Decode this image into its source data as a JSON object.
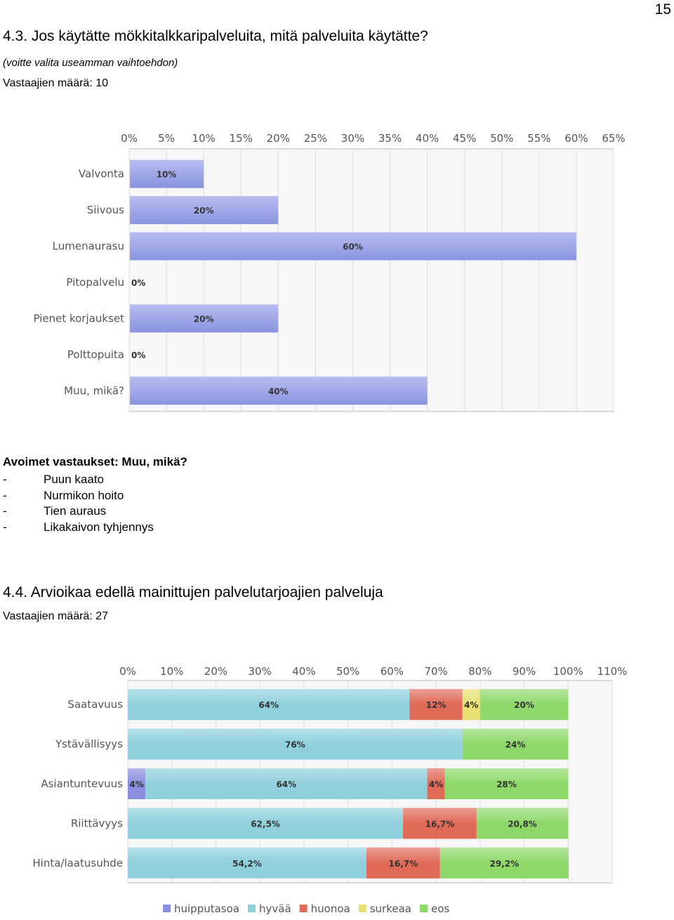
{
  "page_number": "15",
  "section1": {
    "title": "4.3. Jos käytätte mökkitalkkaripalveluita, mitä palveluita käytätte?",
    "note": "(voitte valita useamman vaihtoehdon)",
    "respondents": "Vastaajien määrä: 10"
  },
  "open_answers": {
    "heading": "Avoimet vastaukset: Muu, mikä?",
    "items": [
      {
        "bullet": "-",
        "text": "Puun kaato"
      },
      {
        "bullet": "-",
        "text": "Nurmikon hoito"
      },
      {
        "bullet": "-",
        "text": "Tien auraus"
      },
      {
        "bullet": "-",
        "text": "Likakaivon tyhjennys"
      }
    ]
  },
  "section2": {
    "title": "4.4. Arvioikaa edellä mainittujen palvelutarjoajien palveluja",
    "respondents": "Vastaajien määrä: 27"
  },
  "colors": {
    "huipputasoa": "#8a8fe0",
    "hyvaa": "#8fd0dc",
    "huonoa": "#e06a58",
    "surkeaa": "#e8e070",
    "eos": "#8ed86a",
    "bar1": "#8a93e0"
  },
  "chart_data": [
    {
      "type": "bar",
      "orientation": "horizontal",
      "categories": [
        "Valvonta",
        "Siivous",
        "Lumenaurasu",
        "Pitopalvelu",
        "Pienet korjaukset",
        "Polttopuita",
        "Muu, mikä?"
      ],
      "values": [
        10,
        20,
        60,
        0,
        20,
        0,
        40
      ],
      "value_labels": [
        "10%",
        "20%",
        "60%",
        "0%",
        "20%",
        "0%",
        "40%"
      ],
      "xlim": [
        0,
        65
      ],
      "xticks": [
        "0%",
        "5%",
        "10%",
        "15%",
        "20%",
        "25%",
        "30%",
        "35%",
        "40%",
        "45%",
        "50%",
        "55%",
        "60%",
        "65%"
      ],
      "grid": true
    },
    {
      "type": "bar",
      "orientation": "horizontal",
      "stacked": true,
      "categories": [
        "Saatavuus",
        "Ystävällisyys",
        "Asiantuntevuus",
        "Riittävyys",
        "Hinta/laatusuhde"
      ],
      "series": [
        {
          "name": "huipputasoa",
          "values": [
            0,
            0,
            4,
            0,
            0
          ],
          "labels": [
            "",
            "",
            "4%",
            "",
            ""
          ]
        },
        {
          "name": "hyvää",
          "values": [
            64,
            76,
            64,
            62.5,
            54.2
          ],
          "labels": [
            "64%",
            "76%",
            "64%",
            "62,5%",
            "54,2%"
          ]
        },
        {
          "name": "huonoa",
          "values": [
            12,
            0,
            4,
            16.7,
            16.7
          ],
          "labels": [
            "12%",
            "",
            "4%",
            "16,7%",
            "16,7%"
          ]
        },
        {
          "name": "surkeaa",
          "values": [
            4,
            0,
            0,
            0,
            0
          ],
          "labels": [
            "4%",
            "",
            "",
            "",
            ""
          ]
        },
        {
          "name": "eos",
          "values": [
            20,
            24,
            28,
            20.8,
            29.2
          ],
          "labels": [
            "20%",
            "24%",
            "28%",
            "20,8%",
            "29,2%"
          ]
        }
      ],
      "xlim": [
        0,
        110
      ],
      "xticks": [
        "0%",
        "10%",
        "20%",
        "30%",
        "40%",
        "50%",
        "60%",
        "70%",
        "80%",
        "90%",
        "100%",
        "110%"
      ],
      "legend_position": "bottom",
      "grid": true
    }
  ]
}
